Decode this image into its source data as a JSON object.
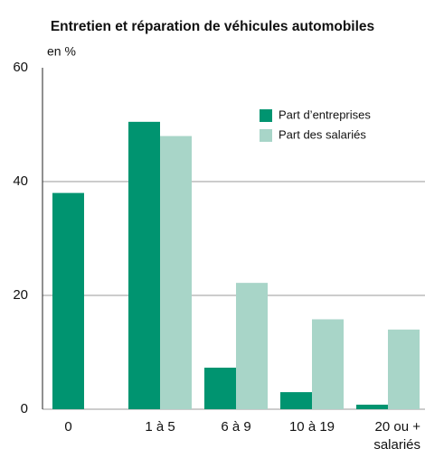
{
  "chart_data": {
    "type": "bar",
    "title": "Entretien et réparation de véhicules automobiles",
    "y_label": "en %",
    "categories": [
      "0",
      "1 à 5",
      "6 à 9",
      "10 à 19",
      "20 ou + salariés"
    ],
    "series": [
      {
        "name": "Part d’entreprises",
        "color": "#009470",
        "values": [
          38,
          50.5,
          7.3,
          3,
          0.8
        ]
      },
      {
        "name": "Part des salariés",
        "color": "#a8d5c8",
        "values": [
          null,
          48,
          22.2,
          15.8,
          14
        ]
      }
    ],
    "ylim": [
      0,
      60
    ],
    "yticks": [
      0,
      20,
      40,
      60
    ],
    "grid": true
  }
}
